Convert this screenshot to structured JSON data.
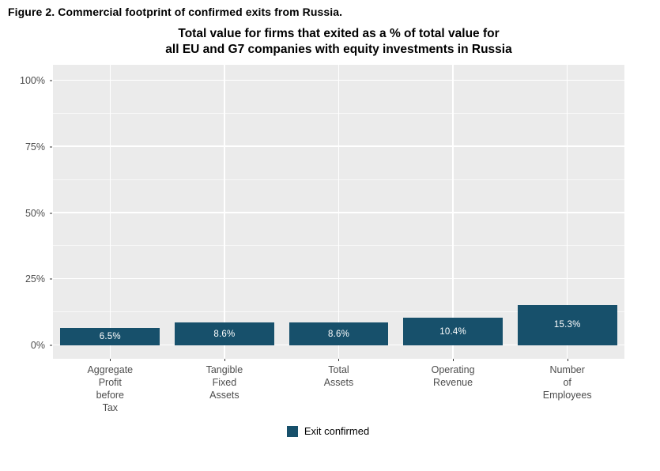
{
  "figure": {
    "caption": "Figure 2. Commercial footprint of confirmed exits from Russia."
  },
  "chart_data": {
    "type": "bar",
    "title": "Total value for firms that exited as a % of total value for\nall EU and G7 companies with equity investments in Russia",
    "categories": [
      "Aggregate\nProfit\nbefore\nTax",
      "Tangible\nFixed\nAssets",
      "Total\nAssets",
      "Operating\nRevenue",
      "Number\nof\nEmployees"
    ],
    "values": [
      6.5,
      8.6,
      8.6,
      10.4,
      15.3
    ],
    "bar_labels": [
      "6.5%",
      "8.6%",
      "8.6%",
      "10.4%",
      "15.3%"
    ],
    "xlabel": "",
    "ylabel": "",
    "ylim": [
      0,
      100
    ],
    "yticks": [
      {
        "value": 0,
        "label": "0%"
      },
      {
        "value": 25,
        "label": "25%"
      },
      {
        "value": 50,
        "label": "50%"
      },
      {
        "value": 75,
        "label": "75%"
      },
      {
        "value": 100,
        "label": "100%"
      }
    ],
    "minor_gridlines": [
      12.5,
      37.5,
      62.5,
      87.5
    ],
    "grid": true,
    "legend_position": "bottom",
    "legend": [
      {
        "label": "Exit confirmed",
        "color": "#17506b"
      }
    ],
    "colors": {
      "bar": "#17506b",
      "panel_background": "#ebebeb",
      "gridline": "#ffffff",
      "axis_text": "#4d4d4d",
      "title_text": "#000000"
    }
  }
}
